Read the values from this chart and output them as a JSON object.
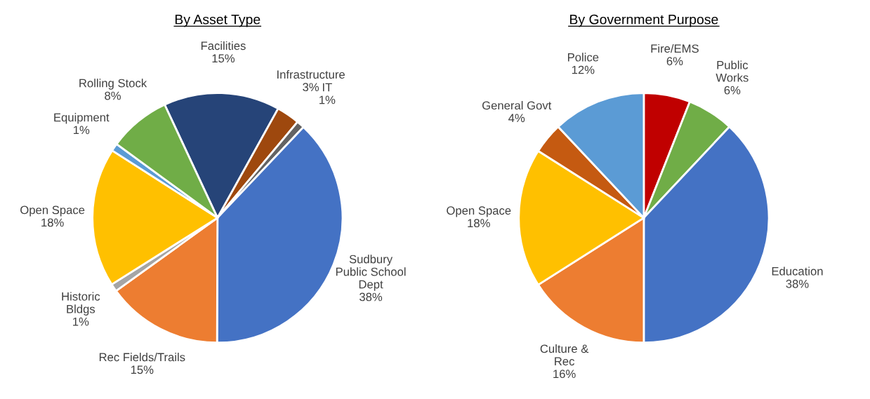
{
  "chart_data": [
    {
      "type": "pie",
      "title": "By Asset Type",
      "categories": [
        "Facilities",
        "Infrastructure",
        "IT",
        "Sudbury\nPublic School\nDept",
        "Rec Fields/Trails",
        "Historic\nBldgs",
        "Open Space",
        "Equipment",
        "Rolling Stock"
      ],
      "values": [
        15,
        3,
        1,
        38,
        15,
        1,
        18,
        1,
        8
      ],
      "value_labels": [
        "15%",
        "3%",
        "1%",
        "38%",
        "15%",
        "1%",
        "18%",
        "1%",
        "8%"
      ],
      "colors": [
        "#264478",
        "#9e480e",
        "#636363",
        "#4472c4",
        "#ed7d31",
        "#a5a5a5",
        "#ffc000",
        "#5b9bd5",
        "#70ad47"
      ]
    },
    {
      "type": "pie",
      "title": "By Government Purpose",
      "categories": [
        "Fire/EMS",
        "Public\nWorks",
        "Education",
        "Culture &\nRec",
        "Open Space",
        "General Govt",
        "Police"
      ],
      "values": [
        6,
        6,
        38,
        16,
        18,
        4,
        12
      ],
      "value_labels": [
        "6%",
        "6%",
        "38%",
        "16%",
        "18%",
        "4%",
        "12%"
      ],
      "colors": [
        "#c00000",
        "#70ad47",
        "#4472c4",
        "#ed7d31",
        "#ffc000",
        "#c55a11",
        "#5b9bd5"
      ]
    }
  ]
}
